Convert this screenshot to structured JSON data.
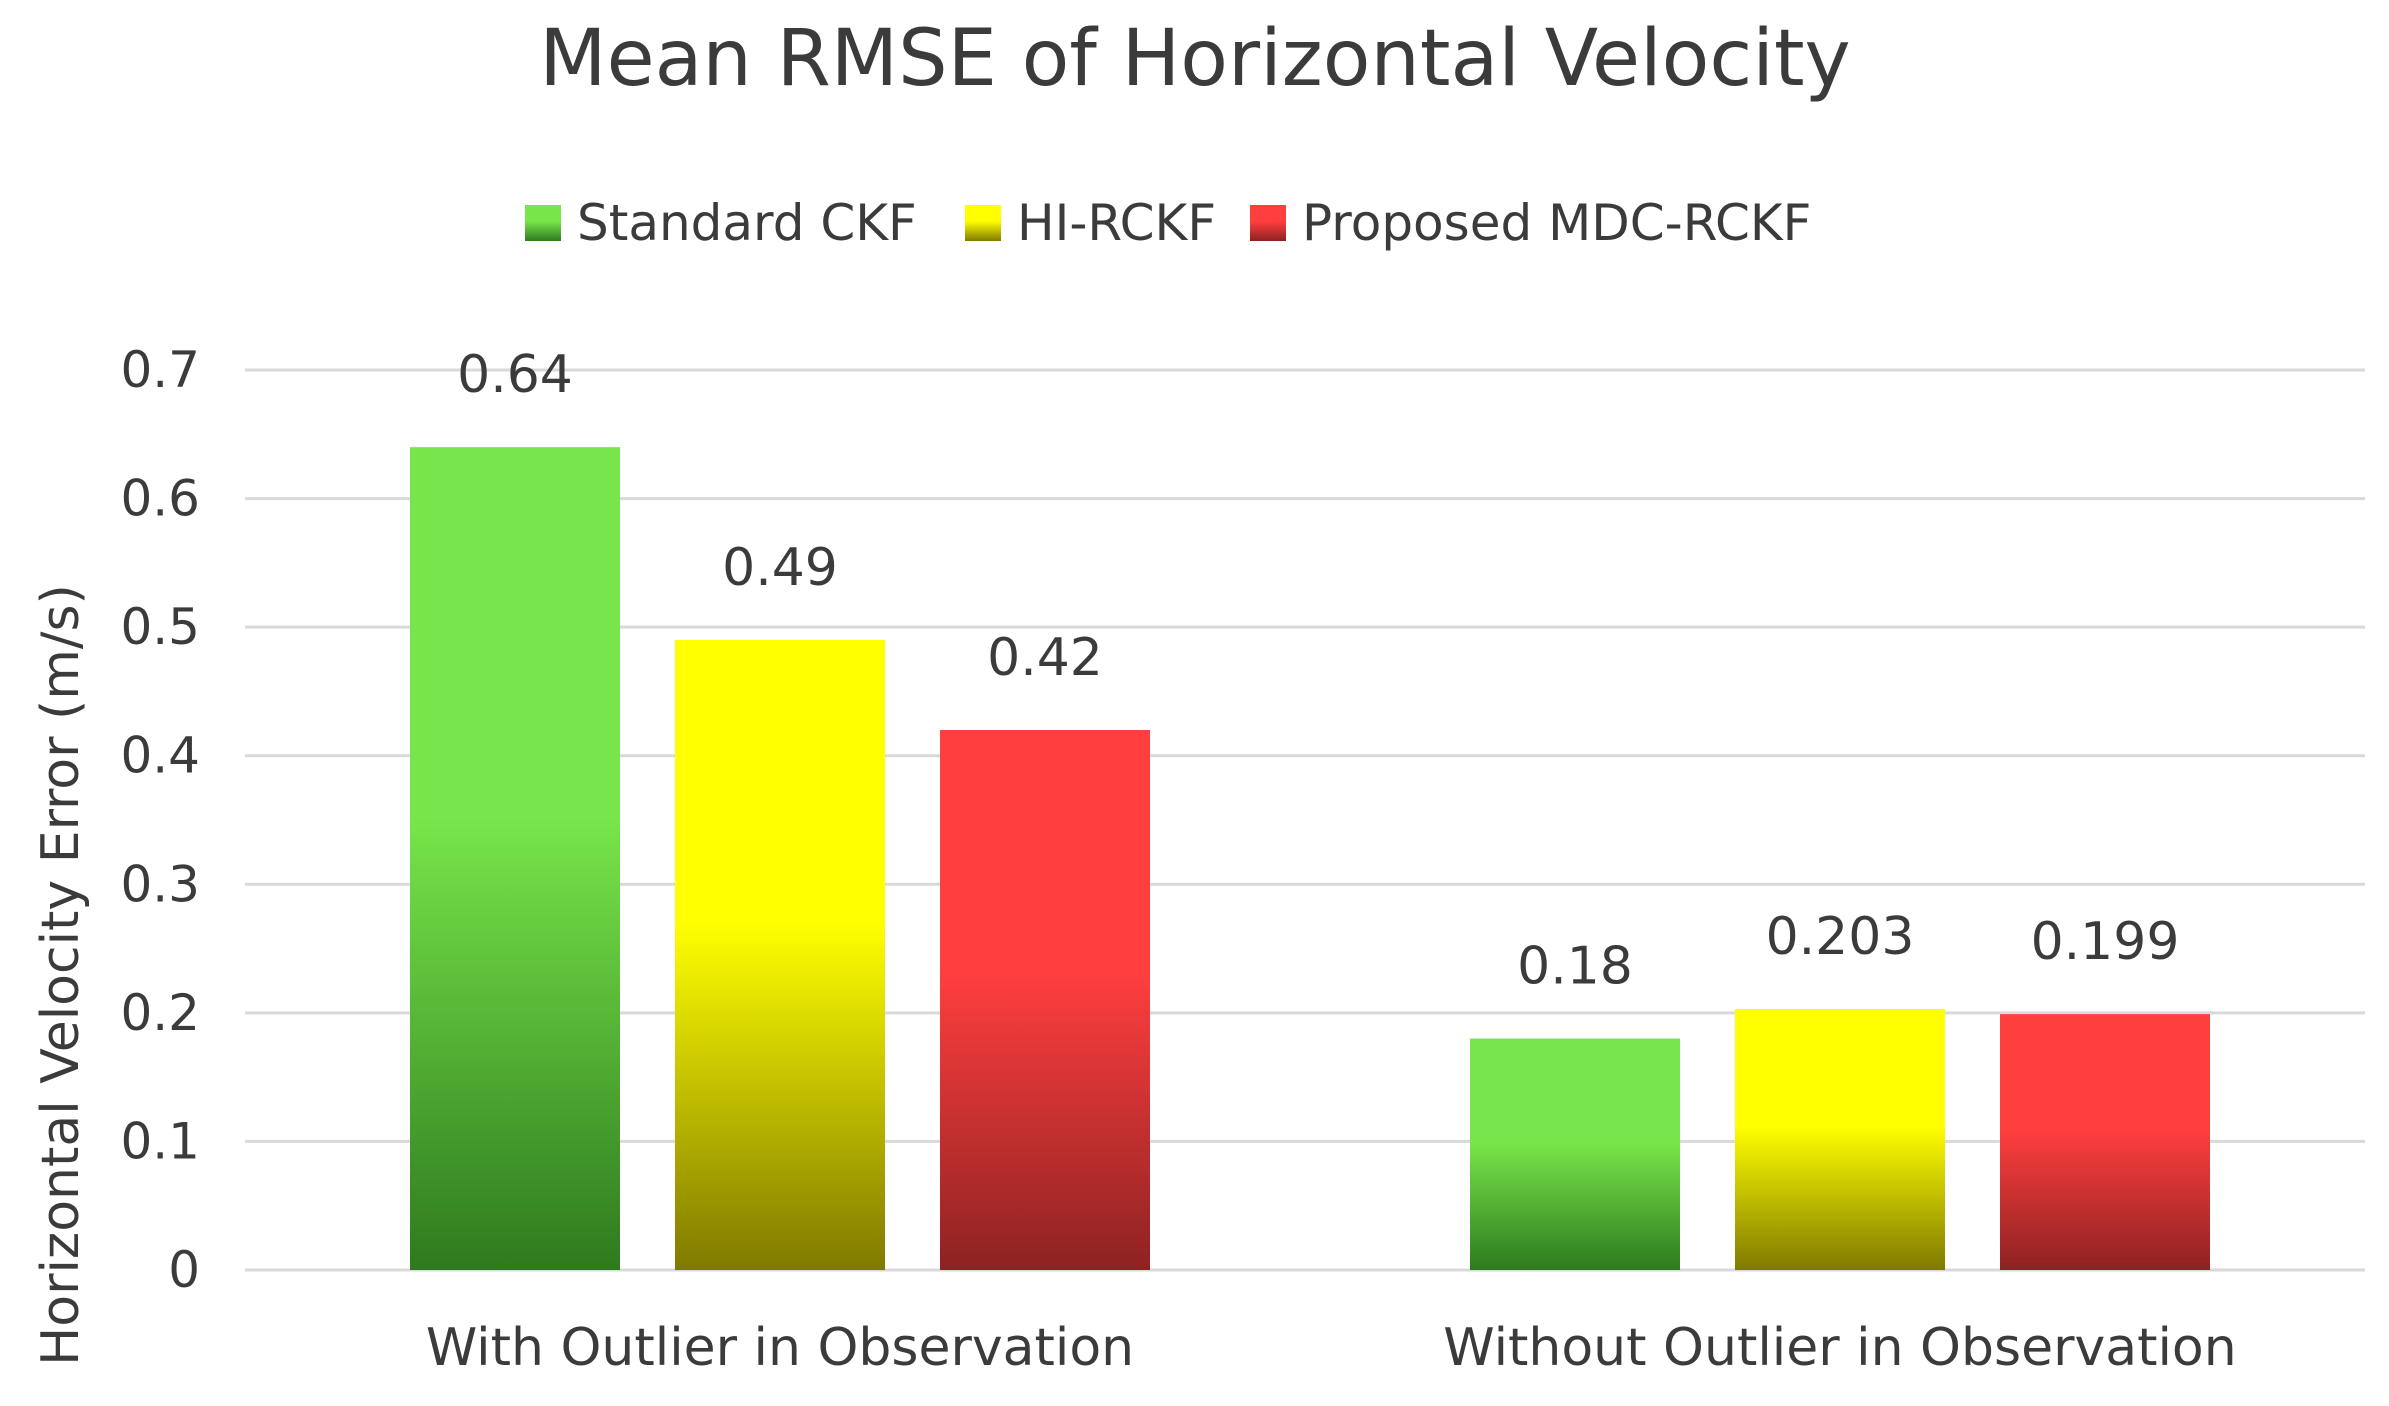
{
  "chart_data": {
    "type": "bar",
    "title": "Mean RMSE of Horizontal Velocity",
    "xlabel": "",
    "ylabel": "Horizontal Velocity Error (m/s)",
    "ylim": [
      0,
      0.7
    ],
    "yticks": [
      "0",
      "0.1",
      "0.2",
      "0.3",
      "0.4",
      "0.5",
      "0.6",
      "0.7"
    ],
    "grid": true,
    "legend_position": "top-center",
    "categories": [
      "With Outlier in Observation",
      "Without Outlier in Observation"
    ],
    "series": [
      {
        "name": "Standard CKF",
        "values": [
          0.64,
          0.18
        ],
        "labels": [
          "0.64",
          "0.18"
        ],
        "color_top": "#78e64a",
        "color_bottom": "#2e7a1e"
      },
      {
        "name": "HI-RCKF",
        "values": [
          0.49,
          0.203
        ],
        "labels": [
          "0.49",
          "0.203"
        ],
        "color_top": "#ffff00",
        "color_bottom": "#7f7a00"
      },
      {
        "name": "Proposed MDC-RCKF",
        "values": [
          0.42,
          0.199
        ],
        "labels": [
          "0.42",
          "0.199"
        ],
        "color_top": "#ff3e3e",
        "color_bottom": "#8e2222"
      }
    ]
  }
}
